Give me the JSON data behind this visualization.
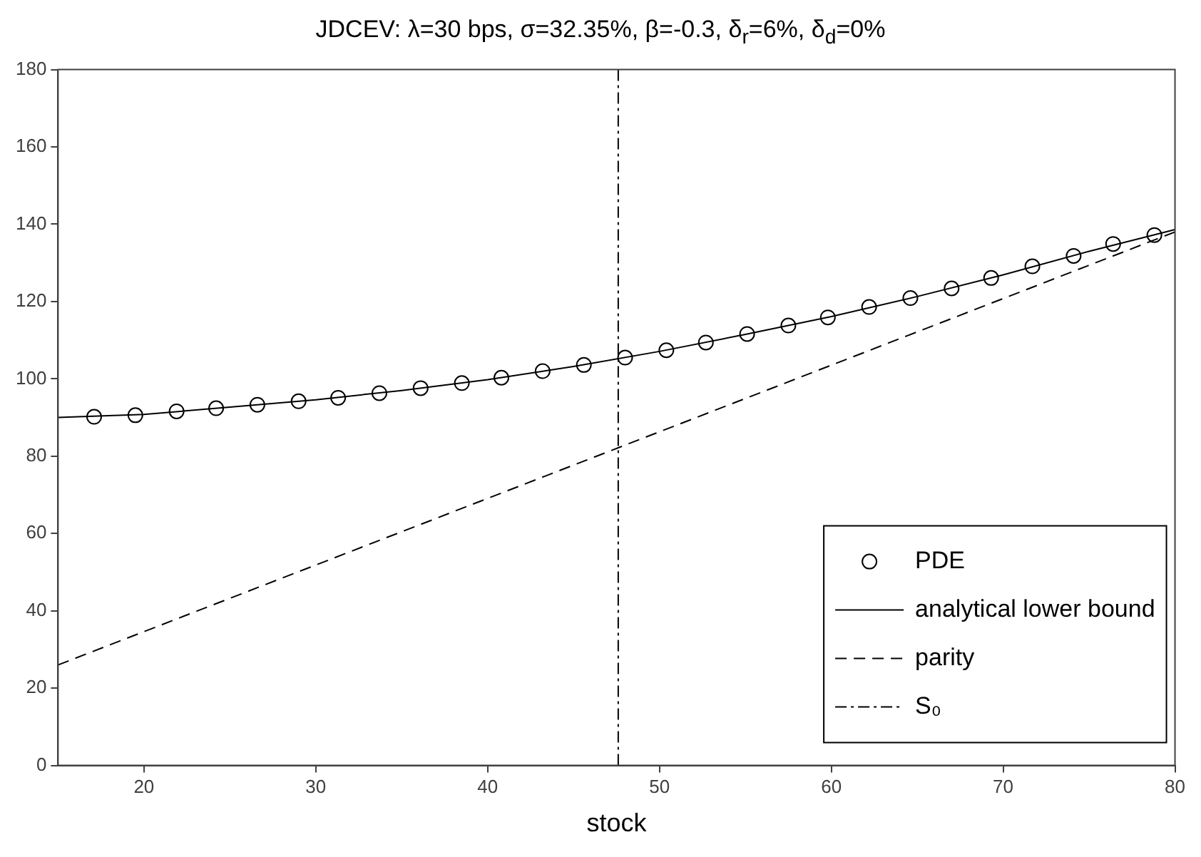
{
  "chart_data": {
    "type": "line",
    "title": "JDCEV: λ=30 bps, σ=32.35%, β=-0.3, δ$_{r}$=6%, δ$_{d}$=0%",
    "xlabel": "stock",
    "xlim": [
      15,
      80
    ],
    "xticks": [
      20,
      30,
      40,
      50,
      60,
      70,
      80
    ],
    "ylim": [
      0,
      180
    ],
    "yticks": [
      0,
      20,
      40,
      60,
      80,
      100,
      120,
      140,
      160,
      180
    ],
    "grid": false,
    "legend": "bottom right",
    "series": [
      {
        "name": "PDE",
        "type": "scatter",
        "marker": "circle",
        "color": "#000000",
        "x": [
          17.1,
          19.5,
          21.9,
          24.2,
          26.6,
          29.0,
          31.3,
          33.7,
          36.1,
          38.5,
          40.8,
          43.2,
          45.6,
          48.0,
          50.4,
          52.7,
          55.1,
          57.5,
          59.8,
          62.2,
          64.6,
          67.0,
          69.3,
          71.7,
          74.1,
          76.4,
          78.8
        ],
        "values": [
          90.2,
          90.6,
          91.6,
          92.4,
          93.3,
          94.2,
          95.1,
          96.3,
          97.6,
          98.9,
          100.3,
          102.0,
          103.6,
          105.5,
          107.4,
          109.4,
          111.6,
          113.8,
          115.9,
          118.6,
          120.9,
          123.4,
          126.1,
          129.1,
          131.8,
          134.9,
          137.2
        ]
      },
      {
        "name": "analytical lower bound",
        "type": "line",
        "line_style": "solid",
        "color": "#000000",
        "x": [
          15,
          20,
          25,
          30,
          35,
          40,
          45,
          50,
          55,
          60,
          65,
          70,
          75,
          80
        ],
        "values": [
          90.0,
          90.8,
          92.7,
          94.6,
          97.0,
          99.8,
          103.2,
          107.1,
          111.5,
          116.1,
          121.3,
          126.9,
          133.0,
          138.6
        ]
      },
      {
        "name": "parity",
        "type": "line",
        "line_style": "dashed",
        "color": "#000000",
        "x": [
          15,
          80
        ],
        "values": [
          26,
          138
        ]
      },
      {
        "name": "S₀",
        "type": "line",
        "line_style": "dashdot",
        "color": "#000000",
        "x": [
          47.6,
          47.6
        ],
        "values": [
          0,
          180
        ]
      }
    ]
  }
}
